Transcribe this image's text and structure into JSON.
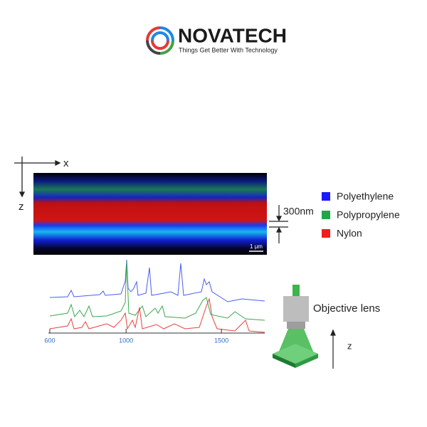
{
  "header": {
    "brand": "NOVATECH",
    "tagline": "Things Get Better With Technology"
  },
  "image": {
    "x_axis": "x",
    "z_axis": "z",
    "thickness": "300nm",
    "scale_bar": "1 µm"
  },
  "legend": [
    {
      "name": "Polyethylene",
      "color": "#1a1aff"
    },
    {
      "name": "Polypropylene",
      "color": "#1fa84a"
    },
    {
      "name": "Nylon",
      "color": "#f01e1e"
    }
  ],
  "spectrum": {
    "xlim": [
      600,
      1727
    ],
    "xticks": [
      600,
      1000,
      1500
    ]
  },
  "lens": {
    "label": "Objective lens",
    "axis": "z"
  }
}
